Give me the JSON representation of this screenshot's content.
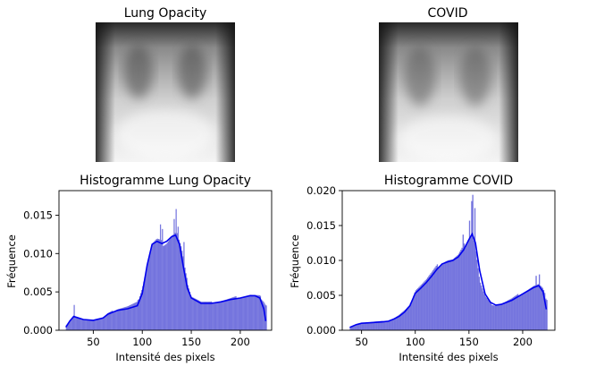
{
  "figure": {
    "image_panels": [
      {
        "title": "Lung Opacity"
      },
      {
        "title": "COVID"
      }
    ]
  },
  "chart_data": [
    {
      "type": "histogram",
      "title": "Histogramme Lung Opacity",
      "xlabel": "Intensité des pixels",
      "ylabel": "Fréquence",
      "xlim": [
        15,
        232
      ],
      "ylim": [
        0,
        0.0182
      ],
      "xticks": [
        50,
        100,
        150,
        200
      ],
      "yticks": [
        0.0,
        0.005,
        0.01,
        0.015
      ],
      "ytick_labels": [
        "0.000",
        "0.005",
        "0.010",
        "0.015"
      ],
      "bar_color": "#6a6adb",
      "kde_color": "#0000ee",
      "bins": {
        "range": [
          22,
          226
        ],
        "curve": [
          [
            22,
            0.0006
          ],
          [
            25,
            0.0011
          ],
          [
            30,
            0.0019
          ],
          [
            35,
            0.0016
          ],
          [
            40,
            0.0014
          ],
          [
            50,
            0.0013
          ],
          [
            55,
            0.0014
          ],
          [
            60,
            0.0016
          ],
          [
            65,
            0.0022
          ],
          [
            75,
            0.0028
          ],
          [
            85,
            0.0031
          ],
          [
            95,
            0.0036
          ],
          [
            100,
            0.0056
          ],
          [
            105,
            0.0085
          ],
          [
            110,
            0.0112
          ],
          [
            115,
            0.0117
          ],
          [
            120,
            0.0113
          ],
          [
            125,
            0.0116
          ],
          [
            130,
            0.0124
          ],
          [
            135,
            0.0128
          ],
          [
            140,
            0.0105
          ],
          [
            145,
            0.0068
          ],
          [
            150,
            0.0045
          ],
          [
            160,
            0.0037
          ],
          [
            170,
            0.0036
          ],
          [
            180,
            0.0038
          ],
          [
            190,
            0.0041
          ],
          [
            200,
            0.0044
          ],
          [
            210,
            0.0046
          ],
          [
            215,
            0.0045
          ],
          [
            220,
            0.0044
          ],
          [
            224,
            0.0038
          ],
          [
            226,
            0.0033
          ]
        ],
        "spikes": [
          [
            30,
            0.0033
          ],
          [
            118,
            0.0138
          ],
          [
            120,
            0.0132
          ],
          [
            132,
            0.0145
          ],
          [
            134,
            0.0158
          ],
          [
            136,
            0.0135
          ],
          [
            142,
            0.0115
          ]
        ]
      },
      "kde": [
        [
          22,
          0.0004
        ],
        [
          26,
          0.0012
        ],
        [
          30,
          0.0018
        ],
        [
          35,
          0.0016
        ],
        [
          40,
          0.0014
        ],
        [
          50,
          0.0013
        ],
        [
          60,
          0.0016
        ],
        [
          65,
          0.0021
        ],
        [
          75,
          0.0026
        ],
        [
          85,
          0.0028
        ],
        [
          95,
          0.0032
        ],
        [
          100,
          0.0048
        ],
        [
          105,
          0.0085
        ],
        [
          110,
          0.0112
        ],
        [
          115,
          0.0116
        ],
        [
          120,
          0.0113
        ],
        [
          125,
          0.0116
        ],
        [
          130,
          0.0122
        ],
        [
          134,
          0.0124
        ],
        [
          138,
          0.0112
        ],
        [
          142,
          0.0082
        ],
        [
          146,
          0.0055
        ],
        [
          150,
          0.0042
        ],
        [
          160,
          0.0035
        ],
        [
          170,
          0.0035
        ],
        [
          180,
          0.0037
        ],
        [
          190,
          0.004
        ],
        [
          200,
          0.0042
        ],
        [
          210,
          0.0045
        ],
        [
          215,
          0.0045
        ],
        [
          220,
          0.0042
        ],
        [
          224,
          0.0028
        ],
        [
          226,
          0.0012
        ]
      ]
    },
    {
      "type": "histogram",
      "title": "Histogramme COVID",
      "xlabel": "Intensité des pixels",
      "ylabel": "Fréquence",
      "xlim": [
        32,
        230
      ],
      "ylim": [
        0,
        0.02
      ],
      "xticks": [
        50,
        100,
        150,
        200
      ],
      "yticks": [
        0.0,
        0.005,
        0.01,
        0.015,
        0.02
      ],
      "ytick_labels": [
        "0.000",
        "0.005",
        "0.010",
        "0.015",
        "0.020"
      ],
      "bar_color": "#6a6adb",
      "kde_color": "#0000ee",
      "bins": {
        "range": [
          39,
          222
        ],
        "curve": [
          [
            39,
            0.0003
          ],
          [
            45,
            0.0007
          ],
          [
            50,
            0.001
          ],
          [
            55,
            0.0011
          ],
          [
            60,
            0.0012
          ],
          [
            70,
            0.0013
          ],
          [
            75,
            0.0014
          ],
          [
            80,
            0.0017
          ],
          [
            85,
            0.0022
          ],
          [
            90,
            0.0028
          ],
          [
            95,
            0.0035
          ],
          [
            100,
            0.0058
          ],
          [
            105,
            0.0065
          ],
          [
            110,
            0.0072
          ],
          [
            115,
            0.0081
          ],
          [
            120,
            0.009
          ],
          [
            125,
            0.0098
          ],
          [
            130,
            0.0101
          ],
          [
            135,
            0.0101
          ],
          [
            140,
            0.0106
          ],
          [
            145,
            0.0118
          ],
          [
            150,
            0.0135
          ],
          [
            153,
            0.014
          ],
          [
            156,
            0.012
          ],
          [
            160,
            0.007
          ],
          [
            165,
            0.0048
          ],
          [
            170,
            0.0038
          ],
          [
            175,
            0.0036
          ],
          [
            180,
            0.0038
          ],
          [
            190,
            0.0045
          ],
          [
            200,
            0.0054
          ],
          [
            210,
            0.0063
          ],
          [
            215,
            0.0065
          ],
          [
            219,
            0.0058
          ],
          [
            222,
            0.0045
          ]
        ],
        "spikes": [
          [
            144,
            0.0137
          ],
          [
            150,
            0.0157
          ],
          [
            152,
            0.0185
          ],
          [
            153,
            0.0194
          ],
          [
            155,
            0.0175
          ],
          [
            212,
            0.0078
          ],
          [
            215,
            0.008
          ]
        ]
      },
      "kde": [
        [
          39,
          0.0004
        ],
        [
          45,
          0.0008
        ],
        [
          50,
          0.001
        ],
        [
          60,
          0.0011
        ],
        [
          70,
          0.0012
        ],
        [
          75,
          0.0013
        ],
        [
          80,
          0.0016
        ],
        [
          85,
          0.002
        ],
        [
          90,
          0.0026
        ],
        [
          95,
          0.0035
        ],
        [
          100,
          0.0053
        ],
        [
          105,
          0.006
        ],
        [
          110,
          0.0068
        ],
        [
          115,
          0.0077
        ],
        [
          120,
          0.0087
        ],
        [
          125,
          0.0095
        ],
        [
          130,
          0.0098
        ],
        [
          135,
          0.01
        ],
        [
          140,
          0.0105
        ],
        [
          145,
          0.0115
        ],
        [
          150,
          0.013
        ],
        [
          153,
          0.0138
        ],
        [
          156,
          0.0125
        ],
        [
          160,
          0.0085
        ],
        [
          165,
          0.0052
        ],
        [
          170,
          0.004
        ],
        [
          175,
          0.0036
        ],
        [
          180,
          0.0037
        ],
        [
          190,
          0.0043
        ],
        [
          200,
          0.0052
        ],
        [
          210,
          0.0061
        ],
        [
          215,
          0.0064
        ],
        [
          219,
          0.0055
        ],
        [
          222,
          0.003
        ]
      ]
    }
  ]
}
